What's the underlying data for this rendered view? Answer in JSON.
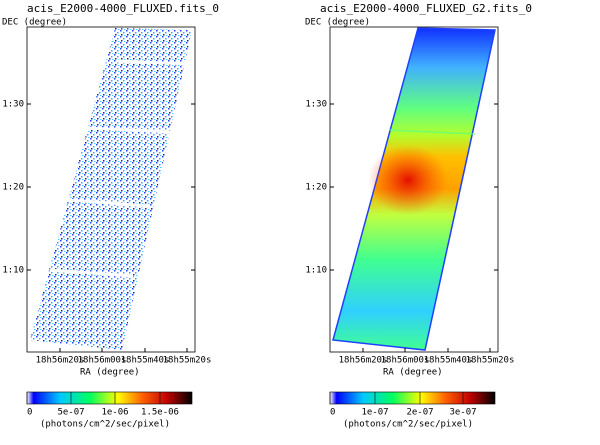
{
  "panels": [
    {
      "title": "acis_E2000-4000_FLUXED.fits_0",
      "y_label": "DEC (degree)",
      "x_label": "RA (degree)",
      "y_ticks": [
        "1:30",
        "1:20",
        "1:10"
      ],
      "x_ticks": [
        "18h56m20s",
        "18h56m00s",
        "18h55m40s",
        "18h55m20s"
      ],
      "colorbar_ticks": [
        "0",
        "5e-07",
        "1e-06",
        "1.5e-06"
      ],
      "colorbar_label": "(photons/cm^2/sec/pixel)"
    },
    {
      "title": "acis_E2000-4000_FLUXED_G2.fits_0",
      "y_label": "DEC (degree)",
      "x_label": "RA (degree)",
      "y_ticks": [
        "1:30",
        "1:20",
        "1:10"
      ],
      "x_ticks": [
        "18h56m20s",
        "18h56m00s",
        "18h55m40s",
        "18h55m20s"
      ],
      "colorbar_ticks": [
        "0",
        "1e-07",
        "2e-07",
        "3e-07"
      ],
      "colorbar_label": "(photons/cm^2/sec/pixel)"
    }
  ]
}
